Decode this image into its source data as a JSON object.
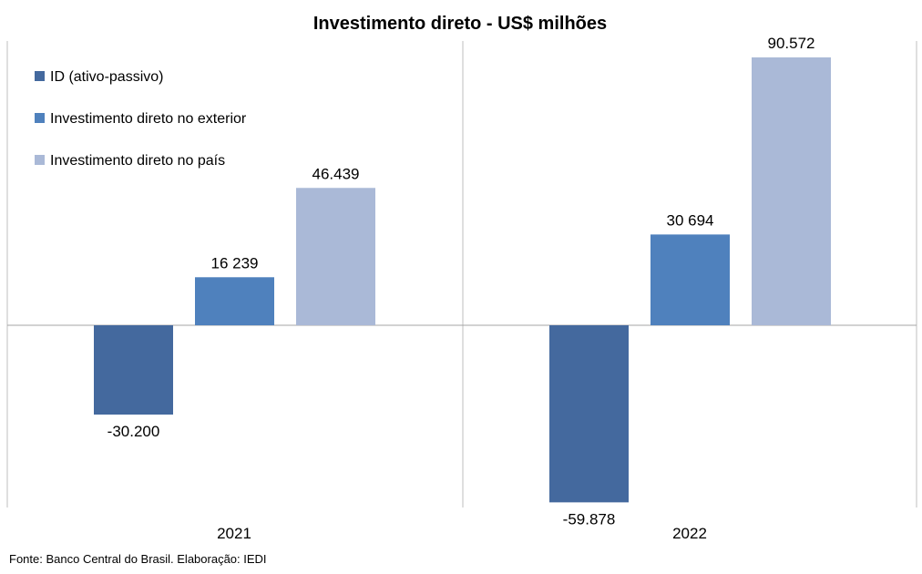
{
  "chart_data": {
    "type": "bar",
    "title": "Investimento direto - US$ milhões",
    "categories": [
      "2021",
      "2022"
    ],
    "series": [
      {
        "name": "ID (ativo-passivo)",
        "color": "#44699E",
        "values": [
          -30200,
          -59878
        ],
        "labels": [
          "-30.200",
          "-59.878"
        ]
      },
      {
        "name": "Investimento direto no exterior",
        "color": "#4F81BD",
        "values": [
          16239,
          30694
        ],
        "labels": [
          "16 239",
          "30 694"
        ]
      },
      {
        "name": "Investimento direto no país",
        "color": "#AAB9D7",
        "values": [
          46439,
          90572
        ],
        "labels": [
          "46.439",
          "90.572"
        ]
      }
    ],
    "grid": false,
    "legend_position": "top-left",
    "xlabel": "",
    "ylabel": ""
  },
  "source": "Fonte: Banco Central do Brasil. Elaboração: IEDI"
}
